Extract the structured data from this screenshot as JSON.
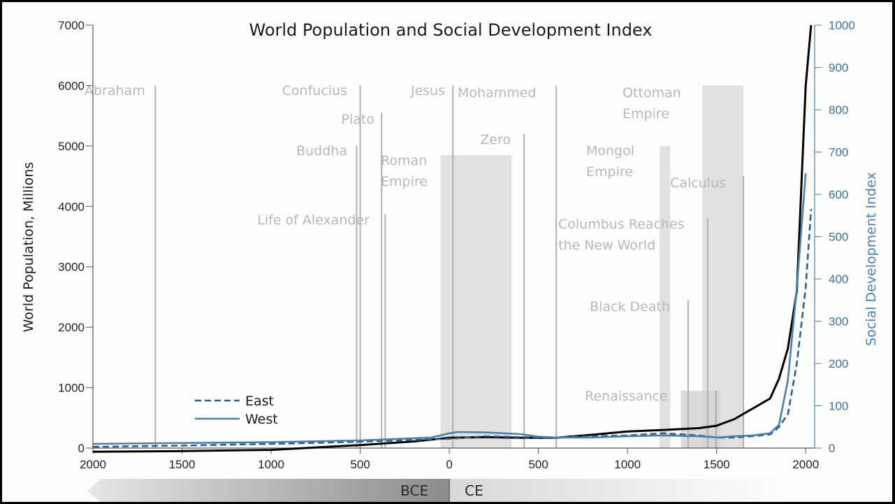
{
  "chart_data": {
    "type": "line",
    "title": "World Population and Social Development Index",
    "ylabel": "World Population, Millions",
    "y2label": "Social Development Index",
    "xlim": [
      -2000,
      2050
    ],
    "ylim": [
      0,
      7000
    ],
    "y2lim": [
      0,
      1000
    ],
    "x_ticks": [
      -2000,
      -1500,
      -1000,
      -500,
      0,
      500,
      1000,
      1500,
      2000
    ],
    "x_tick_labels": [
      "2000",
      "1500",
      "1000",
      "500",
      "0",
      "500",
      "1000",
      "1500",
      "2000"
    ],
    "y_ticks": [
      0,
      1000,
      2000,
      3000,
      4000,
      5000,
      6000,
      7000
    ],
    "y_tick_labels": [
      "0",
      "1000",
      "2000",
      "3000",
      "4000",
      "5000",
      "6000",
      "7000"
    ],
    "y2_ticks": [
      0,
      100,
      200,
      300,
      400,
      500,
      600,
      700,
      800,
      900,
      1000
    ],
    "y2_tick_labels": [
      "0",
      "100",
      "200",
      "300",
      "400",
      "500",
      "600",
      "700",
      "800",
      "900",
      "1000"
    ],
    "era_labels": [
      "BCE",
      "CE"
    ],
    "series": [
      {
        "name": "",
        "axis": "left",
        "color": "#000000",
        "style": "solid",
        "x": [
          -2000,
          -1500,
          -1000,
          -500,
          -200,
          0,
          200,
          400,
          600,
          800,
          1000,
          1200,
          1400,
          1500,
          1600,
          1700,
          1800,
          1850,
          1900,
          1950,
          2000,
          2030
        ],
        "y": [
          -60,
          -50,
          -30,
          50,
          110,
          170,
          180,
          170,
          170,
          220,
          275,
          300,
          330,
          370,
          480,
          650,
          820,
          1150,
          1650,
          2600,
          6000,
          7000
        ]
      },
      {
        "name": "East",
        "axis": "right",
        "color": "#2e5f8c",
        "style": "dashed",
        "x": [
          -2000,
          -1500,
          -1000,
          -500,
          0,
          200,
          400,
          600,
          800,
          1000,
          1200,
          1400,
          1500,
          1600,
          1700,
          1800,
          1850,
          1900,
          1950,
          2000,
          2030
        ],
        "y": [
          3,
          6,
          10,
          15,
          22,
          28,
          26,
          25,
          28,
          30,
          35,
          30,
          25,
          25,
          28,
          32,
          50,
          80,
          200,
          380,
          565
        ]
      },
      {
        "name": "West",
        "axis": "right",
        "color": "#4a80ad",
        "style": "solid",
        "x": [
          -2000,
          -1500,
          -1000,
          -500,
          -100,
          0,
          50,
          200,
          400,
          500,
          600,
          800,
          1000,
          1200,
          1400,
          1500,
          1600,
          1700,
          1800,
          1850,
          1900,
          1950,
          2000
        ],
        "y": [
          10,
          12,
          14,
          18,
          25,
          35,
          38,
          37,
          33,
          27,
          25,
          25,
          28,
          30,
          28,
          25,
          28,
          30,
          35,
          55,
          160,
          380,
          650
        ]
      }
    ],
    "events": [
      {
        "label": "Abraham",
        "year": -1650,
        "top": 6000
      },
      {
        "label": "Confucius",
        "year": -500,
        "top": 6000
      },
      {
        "label": "Buddha",
        "year": -520,
        "top": 5000
      },
      {
        "label": "Plato",
        "year": -380,
        "top": 5550
      },
      {
        "label": "Life of Alexander",
        "year": -360,
        "top": 3870
      },
      {
        "label": "Jesus",
        "year": 20,
        "top": 6000
      },
      {
        "label": "Mohammed",
        "year": 600,
        "top": 6000
      },
      {
        "label": "Zero",
        "year": 420,
        "top": 5200
      },
      {
        "label": "Black Death",
        "year": 1340,
        "top": 2450
      },
      {
        "label": "Columbus Reaches the New World",
        "year": 1450,
        "top": 3800
      },
      {
        "label": "Calculus",
        "year": 1650,
        "top": 4500
      }
    ],
    "spans": [
      {
        "label": "Roman Empire",
        "start": -50,
        "end": 350,
        "top": 4850
      },
      {
        "label": "Mongol Empire",
        "start": 1180,
        "end": 1240,
        "top": 5000
      },
      {
        "label": "Ottoman Empire",
        "start": 1420,
        "end": 1650,
        "top": 6000
      },
      {
        "label": "Renaissance",
        "start": 1300,
        "end": 1520,
        "top": 950
      }
    ]
  },
  "colors": {
    "population": "#000000",
    "east": "#2e5f8c",
    "west": "#4a80ad",
    "right_axis": "#4a80ad",
    "annotation": "#b8b8b8",
    "span_fill": "#d4d4d4",
    "bce_band": "#9a9a9a",
    "ce_band": "#e8e8e8"
  }
}
